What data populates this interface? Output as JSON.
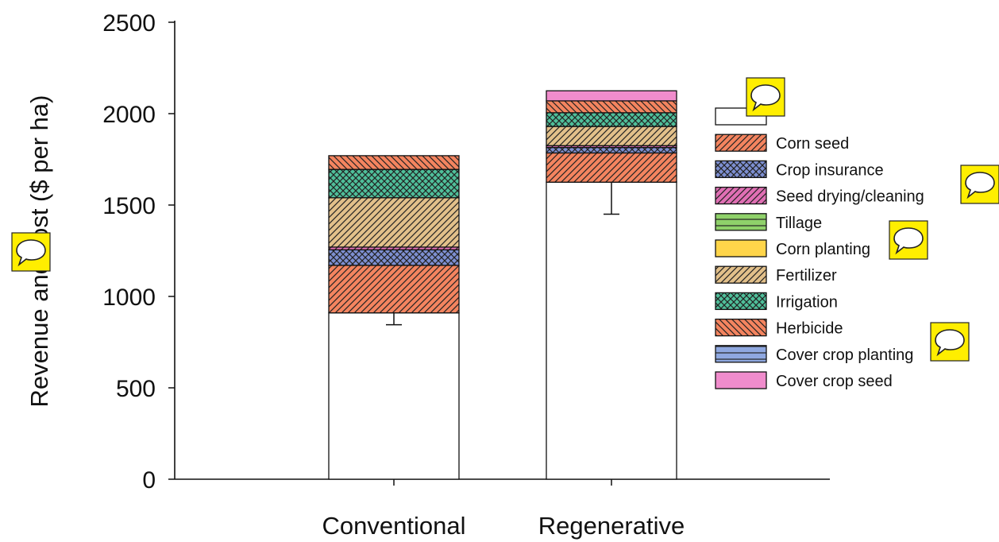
{
  "chart_data": {
    "type": "bar",
    "stacked": true,
    "categories": [
      "Conventional",
      "Regenerative"
    ],
    "xlabel": "",
    "ylabel": "Revenue and cost ($ per ha)",
    "ylim": [
      0,
      2500
    ],
    "yticks": [
      0,
      500,
      1000,
      1500,
      2000,
      2500
    ],
    "grid": false,
    "legend_position": "right",
    "series": [
      {
        "name": "",
        "values": [
          910,
          1625
        ],
        "color": "#ffffff",
        "pattern": "none",
        "error": [
          65,
          175
        ]
      },
      {
        "name": "Corn seed",
        "values": [
          260,
          160
        ],
        "color": "#f4845f",
        "pattern": "diag-right"
      },
      {
        "name": "Crop insurance",
        "values": [
          85,
          30
        ],
        "color": "#7d8fd1",
        "pattern": "crosshatch"
      },
      {
        "name": "Seed drying/cleaning",
        "values": [
          15,
          10
        ],
        "color": "#e06fb4",
        "pattern": "diag-right-dense"
      },
      {
        "name": "Tillage",
        "values": [
          0,
          0
        ],
        "color": "#8fd16a",
        "pattern": "horizontal"
      },
      {
        "name": "Corn planting",
        "values": [
          0,
          0
        ],
        "color": "#ffd54a",
        "pattern": "none"
      },
      {
        "name": "Fertilizer",
        "values": [
          270,
          105
        ],
        "color": "#e2c08a",
        "pattern": "diag-right"
      },
      {
        "name": "Irrigation",
        "values": [
          155,
          75
        ],
        "color": "#4fbf9a",
        "pattern": "crosshatch"
      },
      {
        "name": "Herbicide",
        "values": [
          75,
          65
        ],
        "color": "#f4845f",
        "pattern": "diag-left"
      },
      {
        "name": "Cover crop planting",
        "values": [
          0,
          0
        ],
        "color": "#8fa8e0",
        "pattern": "horizontal"
      },
      {
        "name": "Cover crop seed",
        "values": [
          0,
          55
        ],
        "color": "#f08ccc",
        "pattern": "none"
      }
    ]
  }
}
